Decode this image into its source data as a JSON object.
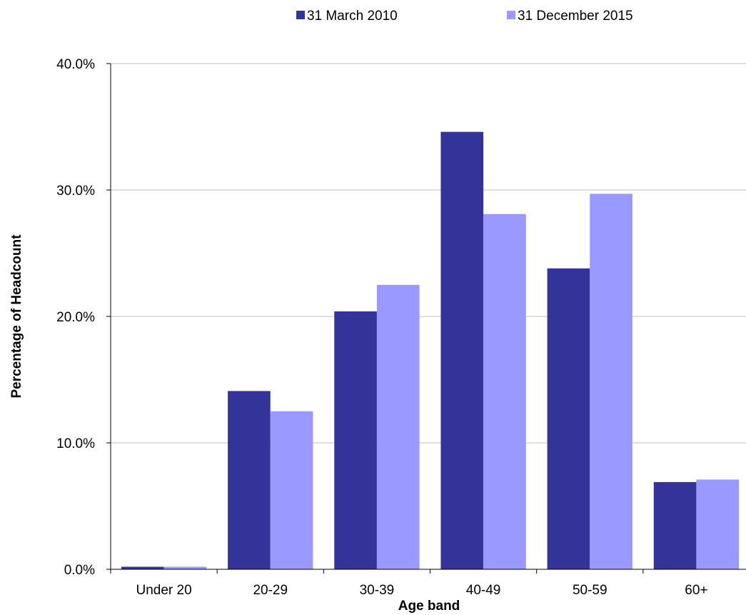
{
  "chart_data": {
    "type": "bar",
    "title": "",
    "xlabel": "Age band",
    "ylabel": "Percentage of Headcount",
    "categories": [
      "Under 20",
      "20-29",
      "30-39",
      "40-49",
      "50-59",
      "60+"
    ],
    "series": [
      {
        "name": "31 March 2010",
        "color": "#333399",
        "values": [
          0.2,
          14.1,
          20.4,
          34.6,
          23.8,
          6.9
        ]
      },
      {
        "name": "31 December 2015",
        "color": "#9999FF",
        "values": [
          0.2,
          12.5,
          22.5,
          28.1,
          29.7,
          7.1
        ]
      }
    ],
    "ylim": [
      0,
      40
    ],
    "yticks": [
      0,
      10,
      20,
      30,
      40
    ],
    "ytick_labels": [
      "0.0%",
      "10.0%",
      "20.0%",
      "30.0%",
      "40.0%"
    ],
    "grid": "horizontal",
    "gridline_color": "#C0C0C0",
    "legend_position": "top"
  }
}
